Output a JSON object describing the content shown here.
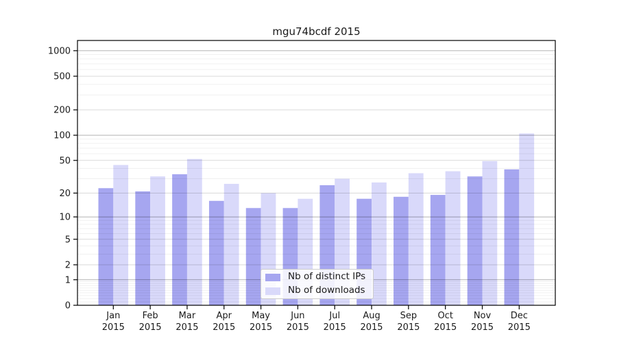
{
  "title": "mgu74bcdf 2015",
  "chart_data": {
    "type": "bar",
    "title": "mgu74bcdf 2015",
    "categories": [
      "Jan 2015",
      "Feb 2015",
      "Mar 2015",
      "Apr 2015",
      "May 2015",
      "Jun 2015",
      "Jul 2015",
      "Aug 2015",
      "Sep 2015",
      "Oct 2015",
      "Nov 2015",
      "Dec 2015"
    ],
    "series": [
      {
        "name": "Nb of distinct IPs",
        "color_key": "ips_bar",
        "values": [
          23,
          21,
          34,
          16,
          13,
          13,
          25,
          17,
          18,
          19,
          32,
          39
        ]
      },
      {
        "name": "Nb of downloads",
        "color_key": "downloads_bar",
        "values": [
          44,
          32,
          52,
          26,
          20,
          17,
          30,
          27,
          35,
          37,
          49,
          105
        ]
      }
    ],
    "xlabel": "",
    "ylabel": "",
    "y_scale": "log10(1+y)",
    "ylim": [
      0,
      1320
    ],
    "y_ticks": [
      0,
      1,
      2,
      5,
      10,
      20,
      50,
      100,
      200,
      500,
      1000
    ],
    "y_tick_labels": [
      "0",
      "1",
      "2",
      "5",
      "10",
      "20",
      "50",
      "100",
      "200",
      "500",
      "1000"
    ],
    "grid": {
      "major": [
        1,
        10,
        100,
        1000
      ],
      "mid": [
        2,
        5,
        20,
        50,
        200,
        500
      ],
      "minor": [
        0.1,
        0.2,
        0.3,
        0.4,
        0.5,
        0.6,
        0.7,
        0.8,
        0.9,
        3,
        4,
        6,
        7,
        8,
        9,
        30,
        40,
        60,
        70,
        80,
        90,
        300,
        400,
        600,
        700,
        800,
        900
      ]
    },
    "legend_position": "lower center",
    "grid_on": true
  },
  "legend": {
    "items": [
      {
        "label": "Nb of distinct IPs",
        "color_key": "ips_bar"
      },
      {
        "label": "Nb of downloads",
        "color_key": "downloads_bar"
      }
    ]
  },
  "colors": {
    "ips_bar": "#a6a6f0",
    "downloads_bar": "#d9d9fa",
    "grid_major": "rgba(0,0,0,0.30)",
    "grid_mid": "rgba(0,0,0,0.15)",
    "grid_minor": "rgba(0,0,0,0.06)",
    "axis": "#000000",
    "text": "#1a1a1a",
    "legend_bg": "rgba(255,255,255,0.85)",
    "legend_border": "#cccccc"
  }
}
